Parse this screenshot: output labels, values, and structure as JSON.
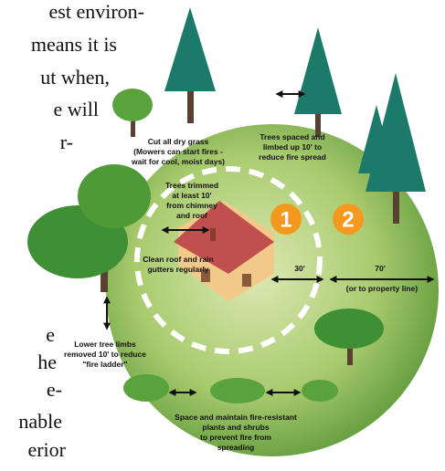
{
  "left_text": {
    "top_lines": [
      "est environ-",
      "means it is",
      "ut when,",
      "e will",
      "r-"
    ],
    "bottom_lines": [
      "e",
      "he",
      "e-",
      "nable",
      "erior"
    ]
  },
  "labels": {
    "dry_grass": [
      "Cut all dry grass",
      "(Mowers can start fires -",
      "wait for cool, moist days)"
    ],
    "trees_spaced": [
      "Trees spaced and",
      "limbed up 10' to",
      "reduce fire spread"
    ],
    "trees_trimmed": [
      "Trees trimmed",
      "at least 10'",
      "from chimney",
      "and roof"
    ],
    "clean_roof": [
      "Clean roof and rain",
      "gutters regularly"
    ],
    "lower_limbs": [
      "Lower tree limbs",
      "removed 10' to reduce",
      "\"fire ladder\""
    ],
    "space_plants": [
      "Space and maintain fire-resistant",
      "plants and shrubs",
      "to prevent fire from",
      "spreading"
    ]
  },
  "zones": {
    "zone1": "1",
    "zone2": "2",
    "zone1_distance": "30'",
    "zone2_distance": "70'",
    "zone2_note": "(or to property line)"
  }
}
